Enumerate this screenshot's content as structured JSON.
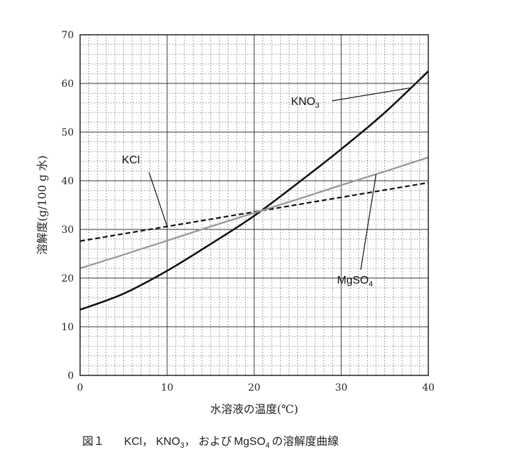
{
  "chart_data": {
    "type": "line",
    "xlabel": "水溶液の温度(℃)",
    "ylabel": "溶解度(g/100 g 水)",
    "xlim": [
      0,
      40
    ],
    "ylim": [
      0,
      70
    ],
    "x_ticks": [
      "0",
      "10",
      "20",
      "30",
      "40"
    ],
    "y_ticks": [
      "0",
      "10",
      "20",
      "30",
      "40",
      "50",
      "60",
      "70"
    ],
    "grid": true,
    "x": [
      0,
      5,
      10,
      15,
      20,
      25,
      30,
      35,
      40
    ],
    "series": [
      {
        "name": "KNO₃",
        "label": "KNO",
        "label_sub": "3",
        "style": "solid-black",
        "values": [
          13.5,
          16.8,
          21.5,
          27.0,
          32.8,
          39.5,
          46.5,
          54.0,
          62.5
        ]
      },
      {
        "name": "KCl",
        "label": "KCl",
        "label_sub": "",
        "style": "dashed-black",
        "values": [
          27.6,
          29.1,
          30.6,
          32.1,
          33.6,
          35.1,
          36.6,
          38.1,
          39.6
        ]
      },
      {
        "name": "MgSO₄",
        "label": "MgSO",
        "label_sub": "4",
        "style": "solid-gray",
        "values": [
          22.0,
          24.8,
          27.7,
          30.6,
          33.4,
          36.2,
          39.1,
          41.9,
          44.8
        ]
      }
    ]
  },
  "caption": {
    "prefix": "図１",
    "kcl": "KCl",
    "sep1": "，",
    "kno3": "KNO",
    "kno3_sub": "3",
    "sep2": "，",
    "conj": "および",
    "mgso4": "MgSO",
    "mgso4_sub": "4",
    "suffix": "の溶解度曲線"
  },
  "colors": {
    "solid_black": "#111111",
    "gray": "#999999",
    "grid": "#555555"
  }
}
